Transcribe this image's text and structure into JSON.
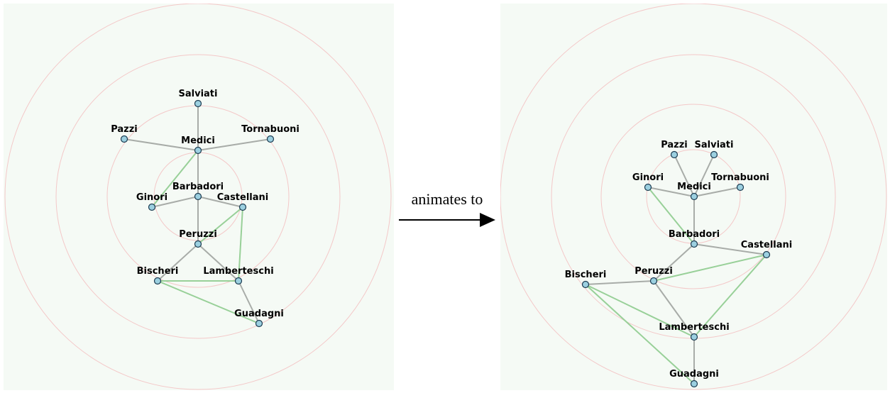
{
  "caption": "animates to",
  "left": {
    "nodes": [
      {
        "label": "Salviati"
      },
      {
        "label": "Pazzi"
      },
      {
        "label": "Tornabuoni"
      },
      {
        "label": "Medici"
      },
      {
        "label": "Barbadori"
      },
      {
        "label": "Ginori"
      },
      {
        "label": "Castellani"
      },
      {
        "label": "Peruzzi"
      },
      {
        "label": "Bischeri"
      },
      {
        "label": "Lamberteschi"
      },
      {
        "label": "Guadagni"
      }
    ]
  },
  "right": {
    "nodes": [
      {
        "label": "Salviati"
      },
      {
        "label": "Pazzi"
      },
      {
        "label": "Tornabuoni"
      },
      {
        "label": "Medici"
      },
      {
        "label": "Barbadori"
      },
      {
        "label": "Ginori"
      },
      {
        "label": "Castellani"
      },
      {
        "label": "Peruzzi"
      },
      {
        "label": "Bischeri"
      },
      {
        "label": "Lamberteschi"
      },
      {
        "label": "Guadagni"
      }
    ]
  }
}
